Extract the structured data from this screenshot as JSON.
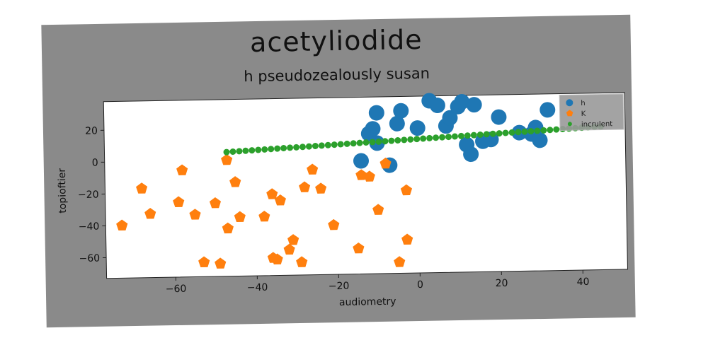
{
  "chart_data": {
    "type": "scatter",
    "title": "acetyliodide",
    "subtitle": "h pseudozealously susan",
    "xlabel": "audiometry",
    "ylabel": "topioftier",
    "xlim": [
      -77,
      51
    ],
    "ylim": [
      -73,
      38
    ],
    "xticks": [
      -60,
      -40,
      -20,
      0,
      20,
      40
    ],
    "yticks": [
      -60,
      -40,
      -20,
      0,
      20
    ],
    "grid": false,
    "legend": {
      "position": "top-right",
      "entries": [
        "h",
        "K",
        "incrulent"
      ]
    },
    "series": [
      {
        "name": "h",
        "marker": "circle",
        "color": "#1f77b4",
        "points": [
          [
            -14,
            -2
          ],
          [
            -12,
            15
          ],
          [
            -11,
            18
          ],
          [
            -10,
            9
          ],
          [
            -10,
            28
          ],
          [
            -7,
            -5
          ],
          [
            -5,
            21
          ],
          [
            -4,
            29
          ],
          [
            0,
            18
          ],
          [
            3,
            35
          ],
          [
            5,
            32
          ],
          [
            7,
            19
          ],
          [
            8,
            24
          ],
          [
            10,
            31
          ],
          [
            11,
            34
          ],
          [
            12,
            7
          ],
          [
            13,
            1
          ],
          [
            14,
            32
          ],
          [
            16,
            9
          ],
          [
            18,
            10
          ],
          [
            20,
            24
          ],
          [
            25,
            14
          ],
          [
            28,
            13
          ],
          [
            29,
            17
          ],
          [
            30,
            9
          ],
          [
            32,
            28
          ]
        ]
      },
      {
        "name": "K",
        "marker": "pentagon",
        "color": "#ff7f0e",
        "points": [
          [
            -73,
            -40
          ],
          [
            -68,
            -17
          ],
          [
            -66,
            -33
          ],
          [
            -59,
            -26
          ],
          [
            -58,
            -6
          ],
          [
            -55,
            -34
          ],
          [
            -53,
            -64
          ],
          [
            -50,
            -27
          ],
          [
            -49,
            -65
          ],
          [
            -47,
            -43
          ],
          [
            -47,
            0
          ],
          [
            -45,
            -14
          ],
          [
            -44,
            -36
          ],
          [
            -38,
            -36
          ],
          [
            -36,
            -62
          ],
          [
            -36,
            -22
          ],
          [
            -35,
            -63
          ],
          [
            -34,
            -26
          ],
          [
            -32,
            -57
          ],
          [
            -31,
            -51
          ],
          [
            -29,
            -65
          ],
          [
            -28,
            -18
          ],
          [
            -26,
            -7
          ],
          [
            -24,
            -19
          ],
          [
            -21,
            -42
          ],
          [
            -15,
            -57
          ],
          [
            -14,
            -11
          ],
          [
            -12,
            -12
          ],
          [
            -10,
            -33
          ],
          [
            -8,
            -4
          ],
          [
            -5,
            -66
          ],
          [
            -3,
            -52
          ],
          [
            -3,
            -21
          ]
        ]
      },
      {
        "name": "incrulent",
        "marker": "dot",
        "color": "#2ca02c",
        "line": {
          "x_start": -47,
          "x_end": 45,
          "y_start": 5,
          "y_end": 17,
          "count": 60
        }
      }
    ]
  }
}
